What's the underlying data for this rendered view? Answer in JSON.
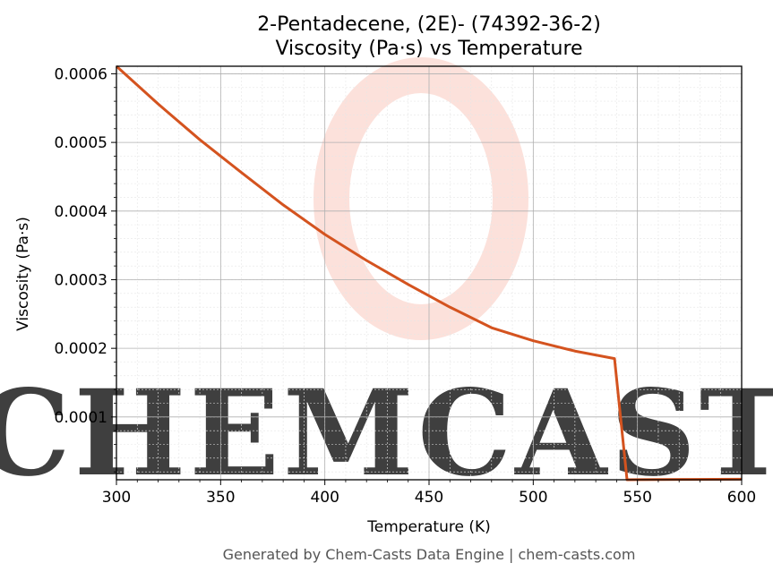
{
  "chart_data": {
    "type": "line",
    "title": "2-Pentadecene, (2E)- (74392-36-2)",
    "subtitle": "Viscosity (Pa·s) vs Temperature",
    "xlabel": "Temperature (K)",
    "ylabel": "Viscosity (Pa·s)",
    "xlim": [
      300,
      600
    ],
    "ylim": [
      8.5e-06,
      0.000611
    ],
    "x_ticks": [
      300,
      350,
      400,
      450,
      500,
      550,
      600
    ],
    "x_tick_labels": [
      "300",
      "350",
      "400",
      "450",
      "500",
      "550",
      "600"
    ],
    "y_ticks": [
      0.0001,
      0.0002,
      0.0003,
      0.0004,
      0.0005,
      0.0006
    ],
    "y_tick_labels": [
      "0.0001",
      "0.0002",
      "0.0003",
      "0.0004",
      "0.0005",
      "0.0006"
    ],
    "grid": true,
    "minor_grid": true,
    "line_color": "#d4531f",
    "series": [
      {
        "x": [
          300,
          320,
          340,
          360,
          380,
          400,
          420,
          440,
          460,
          480,
          500,
          520,
          539,
          545,
          550,
          575,
          600
        ],
        "y": [
          0.000611,
          0.000556,
          0.000504,
          0.000456,
          0.000409,
          0.000366,
          0.000328,
          0.000293,
          0.00026,
          0.00023,
          0.000211,
          0.000196,
          0.000185,
          8.5e-06,
          8.6e-06,
          9e-06,
          9.3e-06
        ]
      }
    ]
  },
  "watermark": {
    "text": "CHEMCASTS",
    "color": "#fbd7cf"
  },
  "footer": "Generated by Chem-Casts Data Engine | chem-casts.com"
}
